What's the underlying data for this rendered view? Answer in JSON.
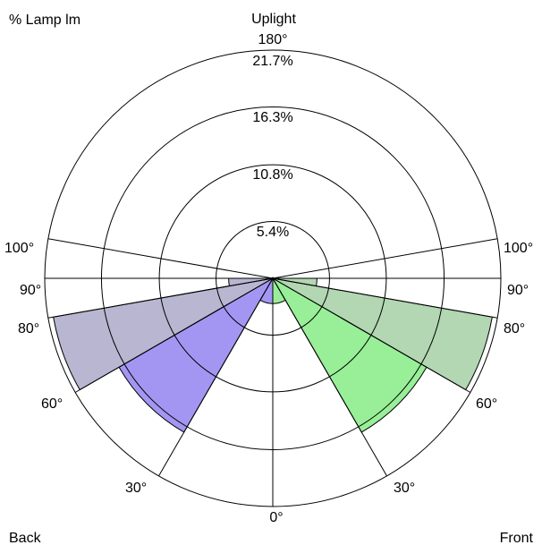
{
  "chart_data": {
    "type": "polar-area",
    "corner_labels": {
      "top_left": "% Lamp lm",
      "bottom_left": "Back",
      "bottom_right": "Front"
    },
    "top_labels": {
      "uplight": "Uplight",
      "angle_180": "180°"
    },
    "rings": [
      {
        "value": 5.4,
        "label": "5.4%"
      },
      {
        "value": 10.8,
        "label": "10.8%"
      },
      {
        "value": 16.3,
        "label": "16.3%"
      },
      {
        "value": 21.7,
        "label": "21.7%"
      }
    ],
    "max_value": 21.7,
    "angle_lines": [
      0,
      30,
      60,
      80,
      90,
      100,
      180
    ],
    "angle_labels": {
      "left": [
        {
          "angle": 100,
          "text": "100°"
        },
        {
          "angle": 90,
          "text": "90°"
        },
        {
          "angle": 80,
          "text": "80°"
        },
        {
          "angle": 60,
          "text": "60°"
        },
        {
          "angle": 30,
          "text": "30°"
        }
      ],
      "right": [
        {
          "angle": 100,
          "text": "100°"
        },
        {
          "angle": 90,
          "text": "90°"
        },
        {
          "angle": 80,
          "text": "80°"
        },
        {
          "angle": 60,
          "text": "60°"
        },
        {
          "angle": 30,
          "text": "30°"
        }
      ],
      "bottom": {
        "angle": 0,
        "text": "0°"
      }
    },
    "series": [
      {
        "side": "back",
        "wedges": [
          {
            "from": 0,
            "to": 30,
            "value": 2.4,
            "color": "#a396f3"
          },
          {
            "from": 30,
            "to": 60,
            "value": 16.9,
            "color": "#a396f3"
          },
          {
            "from": 60,
            "to": 80,
            "value": 21.2,
            "color": "#b8b6d0"
          },
          {
            "from": 80,
            "to": 90,
            "value": 4.2,
            "color": "#b8b6d0"
          },
          {
            "from": 90,
            "to": 100,
            "value": 0,
            "color": "#b8b6d0"
          }
        ]
      },
      {
        "side": "front",
        "wedges": [
          {
            "from": 0,
            "to": 30,
            "value": 2.4,
            "color": "#98ef98"
          },
          {
            "from": 30,
            "to": 60,
            "value": 16.9,
            "color": "#98ef98"
          },
          {
            "from": 60,
            "to": 80,
            "value": 21.2,
            "color": "#b3d6b3"
          },
          {
            "from": 80,
            "to": 90,
            "value": 4.2,
            "color": "#b3d6b3"
          },
          {
            "from": 90,
            "to": 100,
            "value": 0,
            "color": "#b3d6b3"
          }
        ]
      }
    ]
  }
}
